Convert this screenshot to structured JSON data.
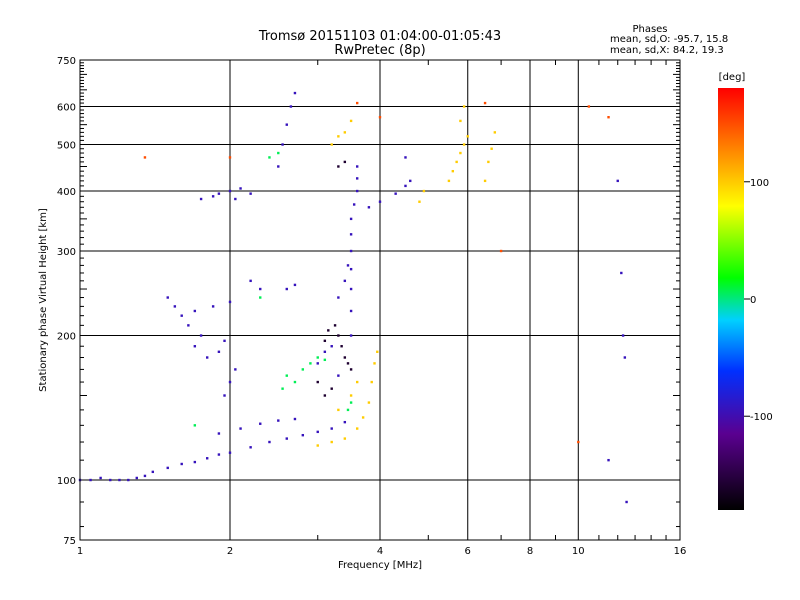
{
  "chart_data": {
    "type": "scatter",
    "title": "Tromsø 20151103 01:04:00-01:05:43",
    "subtitle": "RwPretec (8p)",
    "xlabel": "Frequency [MHz]",
    "ylabel": "Stationary phase Virtual Height [km]",
    "x_scale": "log",
    "y_scale": "log",
    "xlim": [
      1,
      16
    ],
    "ylim": [
      75,
      750
    ],
    "x_ticks": [
      1,
      2,
      4,
      6,
      8,
      10,
      16
    ],
    "y_ticks": [
      75,
      100,
      200,
      300,
      400,
      500,
      600,
      750
    ],
    "grid": true,
    "phase_legend": {
      "title": "Phases",
      "line_o": "mean, sd,O: -95.7, 15.8",
      "line_x": "mean, sd,X:  84.2, 19.3"
    },
    "colorbar": {
      "label": "[deg]",
      "ticks": [
        100,
        0,
        -100
      ],
      "range": [
        -180,
        180
      ]
    },
    "series": [
      {
        "phase_deg": -100,
        "points": [
          [
            1.0,
            100
          ],
          [
            1.05,
            100
          ],
          [
            1.1,
            101
          ],
          [
            1.15,
            100
          ],
          [
            1.2,
            100
          ],
          [
            1.25,
            100
          ],
          [
            1.3,
            101
          ],
          [
            1.35,
            102
          ],
          [
            1.4,
            104
          ],
          [
            1.5,
            106
          ],
          [
            1.6,
            108
          ],
          [
            1.7,
            109
          ],
          [
            1.8,
            111
          ],
          [
            1.9,
            113
          ],
          [
            2.0,
            114
          ],
          [
            2.2,
            117
          ],
          [
            2.4,
            120
          ],
          [
            2.6,
            122
          ],
          [
            2.8,
            124
          ],
          [
            3.0,
            126
          ],
          [
            3.2,
            128
          ],
          [
            3.4,
            132
          ],
          [
            1.9,
            125
          ],
          [
            2.1,
            128
          ],
          [
            2.3,
            131
          ],
          [
            2.5,
            133
          ],
          [
            2.7,
            134
          ],
          [
            1.9,
            185
          ],
          [
            1.95,
            195
          ],
          [
            1.8,
            180
          ],
          [
            1.7,
            190
          ],
          [
            1.75,
            200
          ],
          [
            2.0,
            160
          ],
          [
            2.05,
            170
          ],
          [
            1.95,
            150
          ],
          [
            1.6,
            220
          ],
          [
            1.7,
            225
          ],
          [
            1.85,
            230
          ],
          [
            2.0,
            235
          ],
          [
            1.75,
            385
          ],
          [
            1.85,
            390
          ],
          [
            1.9,
            395
          ],
          [
            2.0,
            400
          ],
          [
            2.05,
            385
          ],
          [
            2.1,
            405
          ],
          [
            2.2,
            395
          ],
          [
            3.5,
            200
          ],
          [
            3.5,
            225
          ],
          [
            3.5,
            250
          ],
          [
            3.5,
            275
          ],
          [
            3.5,
            300
          ],
          [
            3.5,
            325
          ],
          [
            3.5,
            350
          ],
          [
            3.55,
            375
          ],
          [
            3.6,
            400
          ],
          [
            3.6,
            425
          ],
          [
            3.6,
            450
          ],
          [
            3.4,
            260
          ],
          [
            3.45,
            280
          ],
          [
            3.3,
            240
          ],
          [
            3.8,
            370
          ],
          [
            4.0,
            380
          ],
          [
            4.3,
            395
          ],
          [
            4.5,
            410
          ],
          [
            4.6,
            420
          ],
          [
            4.5,
            470
          ],
          [
            3.2,
            190
          ],
          [
            3.1,
            185
          ],
          [
            3.0,
            175
          ],
          [
            3.3,
            165
          ],
          [
            2.5,
            450
          ],
          [
            2.55,
            500
          ],
          [
            2.6,
            550
          ],
          [
            2.65,
            600
          ],
          [
            2.7,
            640
          ],
          [
            2.2,
            260
          ],
          [
            2.3,
            250
          ],
          [
            2.6,
            250
          ],
          [
            2.7,
            255
          ],
          [
            1.5,
            240
          ],
          [
            1.55,
            230
          ],
          [
            1.65,
            210
          ],
          [
            11.5,
            110
          ],
          [
            12.0,
            420
          ],
          [
            12.2,
            270
          ],
          [
            12.3,
            200
          ],
          [
            12.4,
            180
          ],
          [
            12.5,
            90
          ]
        ]
      },
      {
        "phase_deg": 100,
        "points": [
          [
            3.0,
            118
          ],
          [
            3.2,
            120
          ],
          [
            3.4,
            122
          ],
          [
            3.6,
            128
          ],
          [
            3.7,
            135
          ],
          [
            3.8,
            145
          ],
          [
            3.85,
            160
          ],
          [
            3.9,
            175
          ],
          [
            3.95,
            185
          ],
          [
            3.5,
            150
          ],
          [
            3.6,
            160
          ],
          [
            3.3,
            140
          ],
          [
            5.5,
            420
          ],
          [
            5.6,
            440
          ],
          [
            5.7,
            460
          ],
          [
            5.8,
            480
          ],
          [
            5.9,
            500
          ],
          [
            6.0,
            520
          ],
          [
            5.8,
            560
          ],
          [
            5.9,
            600
          ],
          [
            6.5,
            420
          ],
          [
            6.6,
            460
          ],
          [
            6.7,
            490
          ],
          [
            6.8,
            530
          ],
          [
            3.2,
            500
          ],
          [
            3.3,
            520
          ],
          [
            3.4,
            530
          ],
          [
            3.5,
            560
          ],
          [
            4.8,
            380
          ],
          [
            4.9,
            400
          ]
        ]
      },
      {
        "phase_deg": 0,
        "points": [
          [
            2.7,
            160
          ],
          [
            2.8,
            170
          ],
          [
            2.9,
            175
          ],
          [
            3.0,
            180
          ],
          [
            3.1,
            178
          ],
          [
            2.6,
            165
          ],
          [
            2.55,
            155
          ],
          [
            3.5,
            145
          ],
          [
            3.45,
            140
          ],
          [
            1.7,
            130
          ],
          [
            2.3,
            240
          ],
          [
            2.4,
            470
          ],
          [
            2.5,
            480
          ]
        ]
      },
      {
        "phase_deg": -160,
        "points": [
          [
            3.1,
            195
          ],
          [
            3.15,
            205
          ],
          [
            3.25,
            210
          ],
          [
            3.3,
            200
          ],
          [
            3.35,
            190
          ],
          [
            3.4,
            180
          ],
          [
            3.45,
            175
          ],
          [
            3.5,
            170
          ],
          [
            3.2,
            155
          ],
          [
            3.1,
            150
          ],
          [
            3.0,
            160
          ],
          [
            3.3,
            450
          ],
          [
            3.4,
            460
          ]
        ]
      },
      {
        "phase_deg": 150,
        "points": [
          [
            1.35,
            470
          ],
          [
            10.0,
            120
          ],
          [
            10.5,
            600
          ],
          [
            11.5,
            570
          ],
          [
            6.5,
            610
          ],
          [
            7.0,
            300
          ],
          [
            4.0,
            570
          ],
          [
            3.6,
            610
          ],
          [
            2.0,
            470
          ]
        ]
      }
    ]
  }
}
